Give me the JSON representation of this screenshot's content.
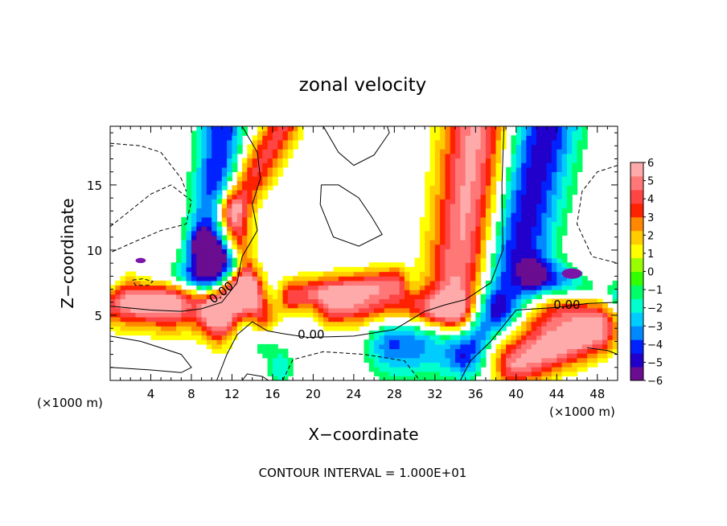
{
  "chart_data": {
    "type": "heatmap",
    "title": "zonal velocity",
    "xlabel": "X−coordinate",
    "ylabel": "Z−coordinate",
    "x_unit_left": "(×1000 m)",
    "x_unit_right": "(×1000 m)",
    "footer": "CONTOUR INTERVAL = 1.000E+01",
    "xlim": [
      0,
      50
    ],
    "ylim": [
      0,
      19.5
    ],
    "x_ticks": [
      4,
      8,
      12,
      16,
      20,
      24,
      28,
      32,
      36,
      40,
      44,
      48
    ],
    "y_ticks": [
      5,
      10,
      15
    ],
    "colorbar": {
      "min": -6,
      "max": 6,
      "ticks": [
        6,
        5,
        4,
        3,
        2,
        1,
        0,
        -1,
        -2,
        -3,
        -4,
        -5,
        -6
      ],
      "colors": [
        "#6a0d91",
        "#2200cc",
        "#0022ff",
        "#0088ff",
        "#00ccff",
        "#00ffcc",
        "#00ff66",
        "#33ff00",
        "#99ff00",
        "#ffff00",
        "#ffcc00",
        "#ff8800",
        "#ff2200",
        "#ff4444",
        "#ff7777",
        "#ffaaaa"
      ],
      "saturation": 6
    },
    "contour_labels": [
      {
        "text": "0.00",
        "x": 11.2,
        "y": 6.5,
        "angle": -38
      },
      {
        "text": "0.00",
        "x": 19.8,
        "y": 3.2,
        "angle": 0
      },
      {
        "text": "0.00",
        "x": 45.0,
        "y": 5.5,
        "angle": 0
      }
    ],
    "features": [
      {
        "kind": "jet",
        "a": [
          2,
          7
        ],
        "b": [
          12,
          6.2
        ],
        "width": 1.3,
        "amp": 4.0
      },
      {
        "kind": "jet",
        "a": [
          0,
          6.5
        ],
        "b": [
          10,
          5.5
        ],
        "width": 1.5,
        "amp": 4.5
      },
      {
        "kind": "jet",
        "a": [
          10,
          5
        ],
        "b": [
          15,
          1
        ],
        "width": 1.2,
        "amp": 3.5
      },
      {
        "kind": "jet",
        "a": [
          12,
          13
        ],
        "b": [
          17,
          19.5
        ],
        "width": 1.2,
        "amp": 4.0
      },
      {
        "kind": "jet",
        "a": [
          13.5,
          7
        ],
        "b": [
          12,
          13
        ],
        "width": 1.0,
        "amp": 3.5
      },
      {
        "kind": "jet",
        "a": [
          15,
          5
        ],
        "b": [
          13.5,
          7
        ],
        "width": 1.0,
        "amp": 3.5
      },
      {
        "kind": "jet",
        "a": [
          18,
          6.5
        ],
        "b": [
          28,
          7.5
        ],
        "width": 0.9,
        "amp": 4.5
      },
      {
        "kind": "jet",
        "a": [
          22,
          5.5
        ],
        "b": [
          34,
          5.5
        ],
        "width": 1.0,
        "amp": 4.0
      },
      {
        "kind": "jet",
        "a": [
          34,
          5.8
        ],
        "b": [
          36,
          19.5
        ],
        "width": 2.2,
        "amp": 5.5
      },
      {
        "kind": "jet",
        "a": [
          38,
          3
        ],
        "b": [
          48,
          6
        ],
        "width": 1.8,
        "amp": 4.5
      },
      {
        "kind": "jet",
        "a": [
          40,
          1
        ],
        "b": [
          48,
          3.5
        ],
        "width": 1.2,
        "amp": 4.0
      },
      {
        "kind": "jet",
        "a": [
          9,
          6
        ],
        "b": [
          11,
          19.5
        ],
        "width": 1.5,
        "amp": -4.5
      },
      {
        "kind": "jet",
        "a": [
          0,
          7.5
        ],
        "b": [
          10,
          7.8
        ],
        "width": 1.0,
        "amp": -4.5
      },
      {
        "kind": "jet",
        "a": [
          12,
          9
        ],
        "b": [
          9,
          10.5
        ],
        "width": 0.8,
        "amp": -4.0
      },
      {
        "kind": "jet",
        "a": [
          13,
          3
        ],
        "b": [
          16,
          1
        ],
        "width": 1.2,
        "amp": -4.0
      },
      {
        "kind": "jet",
        "a": [
          28,
          3
        ],
        "b": [
          36,
          3
        ],
        "width": 1.8,
        "amp": -4.0
      },
      {
        "kind": "jet",
        "a": [
          39,
          6
        ],
        "b": [
          43,
          19.5
        ],
        "width": 2.2,
        "amp": -5.0
      },
      {
        "kind": "jet",
        "a": [
          42,
          8
        ],
        "b": [
          50,
          6.5
        ],
        "width": 1.0,
        "amp": -4.5
      },
      {
        "kind": "jet",
        "a": [
          35,
          2
        ],
        "b": [
          38,
          5
        ],
        "width": 1.2,
        "amp": -3.0
      }
    ],
    "contour_lines": [
      {
        "style": "solid",
        "points": [
          [
            0,
            5.7
          ],
          [
            4,
            5.4
          ],
          [
            7,
            5.3
          ],
          [
            9,
            5.5
          ],
          [
            11,
            6.0
          ],
          [
            12.5,
            7.5
          ],
          [
            13,
            9.5
          ],
          [
            14.5,
            11.5
          ],
          [
            14.0,
            13.5
          ],
          [
            14.8,
            15.5
          ],
          [
            14.5,
            17.5
          ],
          [
            13.0,
            19.5
          ]
        ]
      },
      {
        "style": "solid",
        "points": [
          [
            10.5,
            0
          ],
          [
            11.5,
            2.0
          ],
          [
            12.5,
            3.5
          ],
          [
            14.0,
            4.5
          ],
          [
            15.5,
            3.8
          ],
          [
            17.0,
            3.6
          ],
          [
            19.5,
            3.3
          ],
          [
            24,
            3.4
          ],
          [
            28,
            3.9
          ],
          [
            31,
            5.3
          ],
          [
            33,
            5.8
          ],
          [
            35,
            6.2
          ],
          [
            37.5,
            7.5
          ],
          [
            38.7,
            10
          ],
          [
            38.6,
            15
          ],
          [
            38.8,
            19.5
          ]
        ]
      },
      {
        "style": "solid",
        "points": [
          [
            34.5,
            0
          ],
          [
            35.5,
            1.5
          ],
          [
            37.5,
            3.0
          ],
          [
            40,
            5.4
          ],
          [
            44,
            5.6
          ],
          [
            47,
            5.9
          ],
          [
            50,
            6.0
          ]
        ]
      },
      {
        "style": "solid",
        "points": [
          [
            13.0,
            0
          ],
          [
            13.5,
            0.5
          ],
          [
            15.0,
            0.3
          ],
          [
            15.6,
            0
          ]
        ]
      },
      {
        "style": "solid",
        "points": [
          [
            20.8,
            15.0
          ],
          [
            22.5,
            15.0
          ],
          [
            24.5,
            14.0
          ],
          [
            25.8,
            12.5
          ],
          [
            26.8,
            11.2
          ],
          [
            24.5,
            10.3
          ],
          [
            22.0,
            11.0
          ],
          [
            20.7,
            13.5
          ],
          [
            20.8,
            15.0
          ]
        ]
      },
      {
        "style": "solid",
        "points": [
          [
            21.0,
            19.5
          ],
          [
            22.5,
            17.5
          ],
          [
            24.0,
            16.5
          ],
          [
            26.0,
            17.3
          ],
          [
            27.5,
            19.0
          ],
          [
            27.3,
            19.5
          ]
        ]
      },
      {
        "style": "solid",
        "points": [
          [
            0,
            3.4
          ],
          [
            3,
            3.0
          ],
          [
            5,
            2.5
          ],
          [
            7,
            2.0
          ],
          [
            8,
            1.0
          ],
          [
            7,
            0.6
          ],
          [
            4,
            0.8
          ],
          [
            0,
            1.0
          ]
        ]
      },
      {
        "style": "solid",
        "points": [
          [
            47,
            2.5
          ],
          [
            49,
            2.3
          ],
          [
            50,
            2.0
          ]
        ]
      },
      {
        "style": "dashed",
        "points": [
          [
            0,
            11.8
          ],
          [
            4,
            14.3
          ],
          [
            6,
            15.0
          ],
          [
            8,
            13.8
          ],
          [
            7.5,
            12.0
          ],
          [
            5,
            11.5
          ],
          [
            2,
            10.5
          ],
          [
            0,
            9.8
          ]
        ]
      },
      {
        "style": "dashed",
        "points": [
          [
            0,
            18.2
          ],
          [
            3,
            18.0
          ],
          [
            5,
            17.5
          ],
          [
            7,
            15.5
          ],
          [
            7.5,
            14.5
          ]
        ]
      },
      {
        "style": "dashed",
        "points": [
          [
            2.2,
            7.7
          ],
          [
            3.2,
            7.8
          ],
          [
            4.2,
            7.6
          ],
          [
            3.8,
            7.3
          ],
          [
            2.5,
            7.3
          ],
          [
            2.2,
            7.7
          ]
        ]
      },
      {
        "style": "dashed",
        "points": [
          [
            17.0,
            0
          ],
          [
            18.0,
            1.6
          ],
          [
            21,
            2.2
          ],
          [
            25,
            2.0
          ],
          [
            29,
            1.5
          ],
          [
            30.5,
            0
          ]
        ]
      },
      {
        "style": "dashed",
        "points": [
          [
            50,
            16.5
          ],
          [
            48,
            16.0
          ],
          [
            46.5,
            14.5
          ],
          [
            46.0,
            12.0
          ],
          [
            47.5,
            9.5
          ],
          [
            50,
            9.0
          ]
        ]
      }
    ],
    "patches": [
      {
        "x": 3.0,
        "y": 9.2,
        "rx": 0.5,
        "ry": 0.2,
        "color": "#7a15a8"
      },
      {
        "x": 45.5,
        "y": 8.2,
        "rx": 1.0,
        "ry": 0.4,
        "color": "#7a15a8"
      }
    ]
  }
}
